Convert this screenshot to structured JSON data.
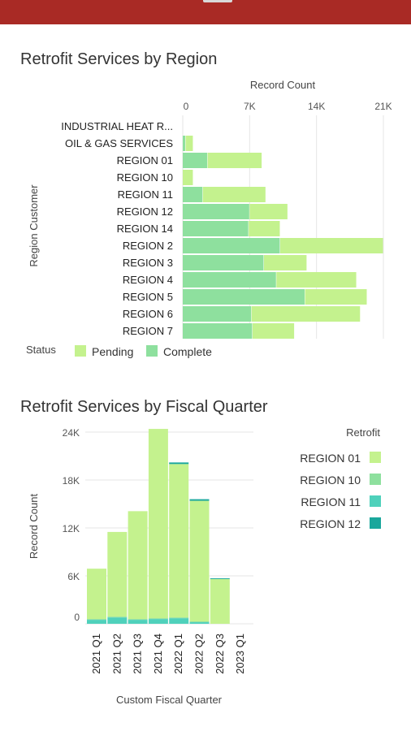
{
  "header": {
    "color": "#a92a25"
  },
  "chart_data": [
    {
      "type": "bar",
      "orientation": "horizontal",
      "stacked": true,
      "title": "Retrofit Services by Region",
      "xlabel": "Record Count",
      "ylabel": "Region Customer",
      "x_ticks": [
        "0",
        "7K",
        "14K",
        "21K"
      ],
      "xlim": [
        0,
        21000
      ],
      "grid": true,
      "categories": [
        "INDUSTRIAL HEAT R...",
        "OIL & GAS SERVICES",
        "REGION 01",
        "REGION 10",
        "REGION 11",
        "REGION 12",
        "REGION 14",
        "REGION 2",
        "REGION 3",
        "REGION 4",
        "REGION 5",
        "REGION 6",
        "REGION 7"
      ],
      "legend_title": "Status",
      "legend_position": "bottom-left",
      "series": [
        {
          "name": "Complete",
          "color": "#8ee09e",
          "values": [
            0,
            300,
            2600,
            0,
            2100,
            7000,
            6900,
            10200,
            8500,
            9800,
            12800,
            7200,
            7300
          ]
        },
        {
          "name": "Pending",
          "color": "#c4f28e",
          "values": [
            0,
            800,
            5700,
            1100,
            6600,
            4000,
            3300,
            10800,
            4500,
            8400,
            6500,
            11400,
            4400
          ]
        }
      ],
      "legend_order": [
        "Pending",
        "Complete"
      ]
    },
    {
      "type": "bar",
      "stacked": true,
      "title": "Retrofit Services by Fiscal Quarter",
      "xlabel": "Custom Fiscal Quarter",
      "ylabel": "Record Count",
      "y_ticks": [
        "0",
        "6K",
        "12K",
        "18K",
        "24K"
      ],
      "ylim": [
        0,
        24000
      ],
      "grid": true,
      "categories": [
        "2021 Q1",
        "2021 Q2",
        "2021 Q3",
        "2021 Q4",
        "2022 Q1",
        "2022 Q2",
        "2022 Q3",
        "2023 Q1"
      ],
      "legend_title": "Retrofit",
      "legend_position": "right",
      "series": [
        {
          "name": "REGION 11",
          "color": "#4fd1bb",
          "values": [
            500,
            800,
            500,
            600,
            700,
            200,
            0,
            0
          ]
        },
        {
          "name": "REGION 10",
          "color": "#8ee09e",
          "values": [
            100,
            100,
            100,
            100,
            100,
            100,
            0,
            0
          ]
        },
        {
          "name": "REGION 01",
          "color": "#c4f28e",
          "values": [
            6300,
            10600,
            13500,
            23700,
            19200,
            15100,
            5600,
            0
          ]
        },
        {
          "name": "REGION 12",
          "color": "#1aa79c",
          "values": [
            0,
            0,
            0,
            0,
            200,
            200,
            100,
            0
          ]
        }
      ],
      "legend_order": [
        "REGION 01",
        "REGION 10",
        "REGION 11",
        "REGION 12"
      ]
    }
  ]
}
